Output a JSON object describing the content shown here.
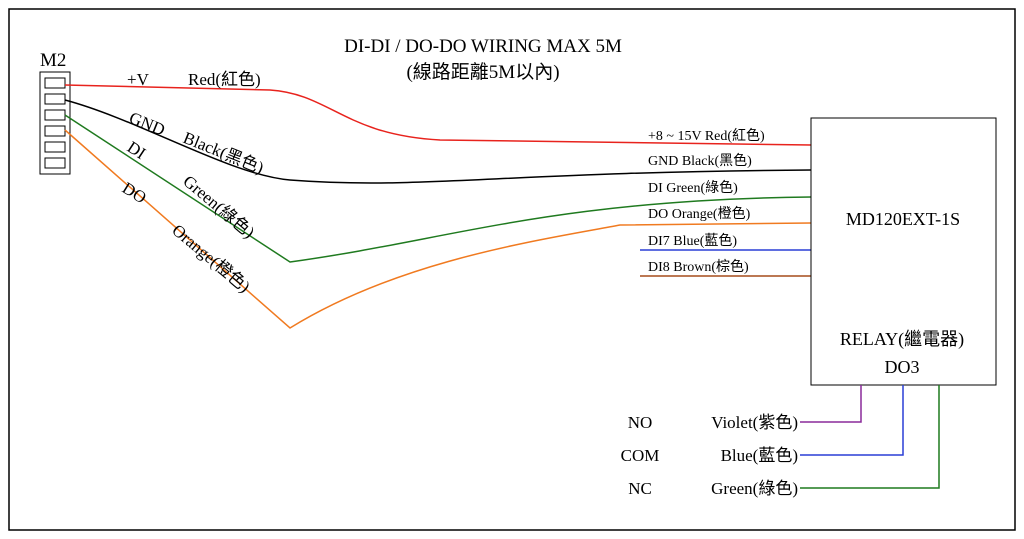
{
  "title": {
    "line1": "DI-DI / DO-DO WIRING MAX 5M",
    "line2": "(線路距離5M以內)"
  },
  "connector": {
    "label": "M2",
    "pin_count": 6
  },
  "left_wires": [
    {
      "signal": "+V",
      "color_name": "Red(紅色)",
      "color": "#e8231d"
    },
    {
      "signal": "GND",
      "color_name": "Black(黑色)",
      "color": "#000000"
    },
    {
      "signal": "DI",
      "color_name": "Green(綠色)",
      "color": "#1f7a1f"
    },
    {
      "signal": "DO",
      "color_name": "Orange(橙色)",
      "color": "#f07a20"
    }
  ],
  "device": {
    "name": "MD120EXT-1S",
    "relay_label": "RELAY(繼電器)",
    "relay_output": "DO3"
  },
  "device_wires": [
    {
      "label": "+8 ~ 15V  Red(紅色)",
      "color": "#e8231d"
    },
    {
      "label": "GND  Black(黑色)",
      "color": "#000000"
    },
    {
      "label": "DI     Green(綠色)",
      "color": "#1f7a1f"
    },
    {
      "label": "DO     Orange(橙色)",
      "color": "#f07a20"
    },
    {
      "label": "DI7   Blue(藍色)",
      "color": "#2a3fd6"
    },
    {
      "label": "DI8   Brown(棕色)",
      "color": "#a64b1a"
    }
  ],
  "relay_wires": [
    {
      "contact": "NO",
      "color_name": "Violet(紫色)",
      "color": "#8a2a9a"
    },
    {
      "contact": "COM",
      "color_name": "Blue(藍色)",
      "color": "#2a3fd6"
    },
    {
      "contact": "NC",
      "color_name": "Green(綠色)",
      "color": "#1f7a1f"
    }
  ]
}
